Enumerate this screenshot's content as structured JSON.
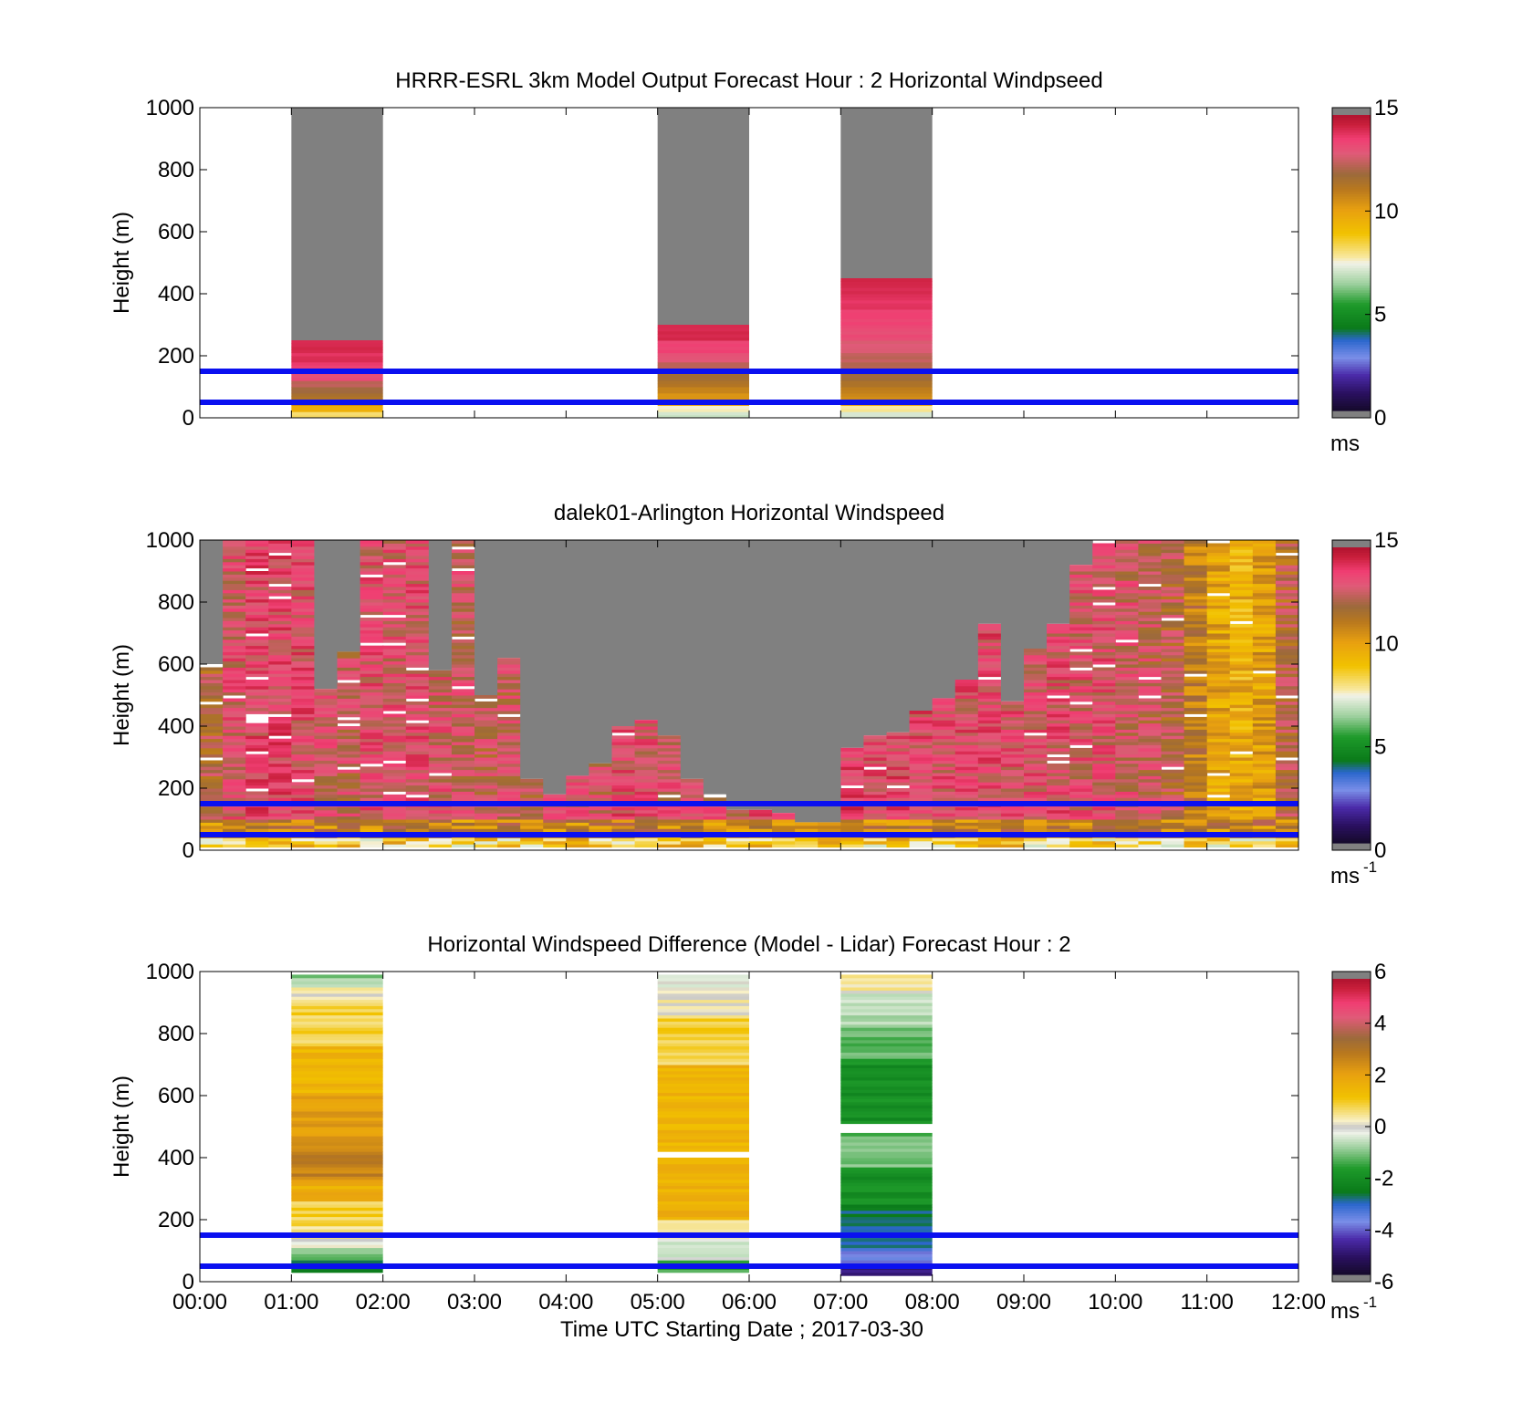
{
  "chart_data": [
    {
      "type": "heatmap",
      "title": "HRRR-ESRL 3km Model Output   Forecast Hour : 2 Horizontal Windpseed",
      "ylabel": "Height (m)",
      "xlabel": "",
      "ylim": [
        0,
        1000
      ],
      "yticks": [
        "0",
        "200",
        "400",
        "600",
        "800",
        "1000"
      ],
      "xlim_hours": [
        0,
        12
      ],
      "colorbar": {
        "min": 0,
        "max": 15,
        "ticks": [
          "0",
          "5",
          "10",
          "15"
        ],
        "unit": "ms",
        "unit_sup": "",
        "scale": "speed"
      },
      "reference_lines_m": [
        50,
        150
      ],
      "columns": [
        {
          "start_hour": 1,
          "end_hour": 2,
          "valid_top_m": 250,
          "layers": [
            [
              0,
              20,
              8.2
            ],
            [
              20,
              40,
              9.6
            ],
            [
              40,
              60,
              10.8
            ],
            [
              60,
              80,
              11.6
            ],
            [
              80,
              100,
              12.0
            ],
            [
              100,
              120,
              12.5
            ],
            [
              120,
              150,
              13.4
            ],
            [
              150,
              180,
              13.8
            ],
            [
              180,
              210,
              14.1
            ],
            [
              210,
              250,
              14.3
            ]
          ]
        },
        {
          "start_hour": 5,
          "end_hour": 6,
          "valid_top_m": 300,
          "layers": [
            [
              0,
              20,
              7.0
            ],
            [
              20,
              40,
              7.6
            ],
            [
              40,
              60,
              10.2
            ],
            [
              60,
              80,
              10.6
            ],
            [
              80,
              100,
              11.0
            ],
            [
              100,
              120,
              11.4
            ],
            [
              120,
              150,
              11.8
            ],
            [
              150,
              180,
              12.4
            ],
            [
              180,
              210,
              13.2
            ],
            [
              210,
              250,
              13.7
            ],
            [
              250,
              300,
              14.3
            ]
          ]
        },
        {
          "start_hour": 7,
          "end_hour": 8,
          "valid_top_m": 450,
          "layers": [
            [
              0,
              20,
              7.2
            ],
            [
              20,
              40,
              7.8
            ],
            [
              40,
              60,
              10.3
            ],
            [
              60,
              80,
              10.8
            ],
            [
              80,
              100,
              11.2
            ],
            [
              100,
              120,
              11.6
            ],
            [
              120,
              150,
              12.0
            ],
            [
              150,
              180,
              12.3
            ],
            [
              180,
              210,
              12.6
            ],
            [
              210,
              250,
              13.0
            ],
            [
              250,
              300,
              13.4
            ],
            [
              300,
              350,
              13.7
            ],
            [
              350,
              400,
              14.0
            ],
            [
              400,
              450,
              14.3
            ]
          ]
        }
      ]
    },
    {
      "type": "heatmap",
      "title": "dalek01-Arlington  Horizontal Windspeed",
      "ylabel": "Height (m)",
      "xlabel": "",
      "ylim": [
        0,
        1000
      ],
      "yticks": [
        "0",
        "200",
        "400",
        "600",
        "800",
        "1000"
      ],
      "xlim_hours": [
        0,
        12
      ],
      "colorbar": {
        "min": 0,
        "max": 15,
        "ticks": [
          "0",
          "5",
          "10",
          "15"
        ],
        "unit": "ms",
        "unit_sup": "-1",
        "scale": "speed"
      },
      "reference_lines_m": [
        50,
        150
      ],
      "bin_width_hours": 0.25,
      "profiles": [
        {
          "start_hour": 0.0,
          "valid_top_m": 600,
          "mean": 12.4
        },
        {
          "start_hour": 0.25,
          "valid_top_m": 1000,
          "mean": 13.4
        },
        {
          "start_hour": 0.5,
          "valid_top_m": 1000,
          "mean": 13.8
        },
        {
          "start_hour": 0.75,
          "valid_top_m": 1000,
          "mean": 13.9
        },
        {
          "start_hour": 1.0,
          "valid_top_m": 1000,
          "mean": 13.7
        },
        {
          "start_hour": 1.25,
          "valid_top_m": 520,
          "mean": 13.2
        },
        {
          "start_hour": 1.5,
          "valid_top_m": 640,
          "mean": 13.0
        },
        {
          "start_hour": 1.75,
          "valid_top_m": 1000,
          "mean": 13.5
        },
        {
          "start_hour": 2.0,
          "valid_top_m": 1000,
          "mean": 13.4
        },
        {
          "start_hour": 2.25,
          "valid_top_m": 1000,
          "mean": 13.6
        },
        {
          "start_hour": 2.5,
          "valid_top_m": 580,
          "mean": 13.3
        },
        {
          "start_hour": 2.75,
          "valid_top_m": 1000,
          "mean": 13.1
        },
        {
          "start_hour": 3.0,
          "valid_top_m": 500,
          "mean": 12.9
        },
        {
          "start_hour": 3.25,
          "valid_top_m": 620,
          "mean": 13.0
        },
        {
          "start_hour": 3.5,
          "valid_top_m": 230,
          "mean": 12.8
        },
        {
          "start_hour": 3.75,
          "valid_top_m": 180,
          "mean": 13.0
        },
        {
          "start_hour": 4.0,
          "valid_top_m": 240,
          "mean": 13.2
        },
        {
          "start_hour": 4.25,
          "valid_top_m": 280,
          "mean": 13.1
        },
        {
          "start_hour": 4.5,
          "valid_top_m": 400,
          "mean": 13.6
        },
        {
          "start_hour": 4.75,
          "valid_top_m": 420,
          "mean": 13.5
        },
        {
          "start_hour": 5.0,
          "valid_top_m": 370,
          "mean": 13.3
        },
        {
          "start_hour": 5.25,
          "valid_top_m": 230,
          "mean": 13.6
        },
        {
          "start_hour": 5.5,
          "valid_top_m": 180,
          "mean": 13.2
        },
        {
          "start_hour": 5.75,
          "valid_top_m": 130,
          "mean": 13.0
        },
        {
          "start_hour": 6.0,
          "valid_top_m": 130,
          "mean": 13.6
        },
        {
          "start_hour": 6.25,
          "valid_top_m": 120,
          "mean": 13.4
        },
        {
          "start_hour": 6.5,
          "valid_top_m": 90,
          "mean": 13.8
        },
        {
          "start_hour": 6.75,
          "valid_top_m": 90,
          "mean": 13.9
        },
        {
          "start_hour": 7.0,
          "valid_top_m": 330,
          "mean": 13.9
        },
        {
          "start_hour": 7.25,
          "valid_top_m": 370,
          "mean": 13.8
        },
        {
          "start_hour": 7.5,
          "valid_top_m": 380,
          "mean": 13.8
        },
        {
          "start_hour": 7.75,
          "valid_top_m": 450,
          "mean": 13.7
        },
        {
          "start_hour": 8.0,
          "valid_top_m": 490,
          "mean": 13.6
        },
        {
          "start_hour": 8.25,
          "valid_top_m": 550,
          "mean": 13.6
        },
        {
          "start_hour": 8.5,
          "valid_top_m": 730,
          "mean": 13.7
        },
        {
          "start_hour": 8.75,
          "valid_top_m": 480,
          "mean": 13.6
        },
        {
          "start_hour": 9.0,
          "valid_top_m": 650,
          "mean": 13.5
        },
        {
          "start_hour": 9.25,
          "valid_top_m": 730,
          "mean": 13.6
        },
        {
          "start_hour": 9.5,
          "valid_top_m": 920,
          "mean": 13.4
        },
        {
          "start_hour": 9.75,
          "valid_top_m": 1000,
          "mean": 13.5
        },
        {
          "start_hour": 10.0,
          "valid_top_m": 1000,
          "mean": 13.2
        },
        {
          "start_hour": 10.25,
          "valid_top_m": 1000,
          "mean": 13.0
        },
        {
          "start_hour": 10.5,
          "valid_top_m": 1000,
          "mean": 12.6
        },
        {
          "start_hour": 10.75,
          "valid_top_m": 1000,
          "mean": 11.6
        },
        {
          "start_hour": 11.0,
          "valid_top_m": 1000,
          "mean": 10.4
        },
        {
          "start_hour": 11.25,
          "valid_top_m": 1000,
          "mean": 10.0
        },
        {
          "start_hour": 11.5,
          "valid_top_m": 1000,
          "mean": 10.6
        },
        {
          "start_hour": 11.75,
          "valid_top_m": 1000,
          "mean": 12.4
        }
      ]
    },
    {
      "type": "heatmap",
      "title": "Horizontal Windspeed Difference (Model - Lidar) Forecast Hour : 2",
      "ylabel": "Height (m)",
      "xlabel": "Time UTC  Starting Date ; 2017-03-30",
      "ylim": [
        0,
        1000
      ],
      "yticks": [
        "0",
        "200",
        "400",
        "600",
        "800",
        "1000"
      ],
      "xlim_hours": [
        0,
        12
      ],
      "xticks": [
        "00:00",
        "01:00",
        "02:00",
        "03:00",
        "04:00",
        "05:00",
        "06:00",
        "07:00",
        "08:00",
        "09:00",
        "10:00",
        "11:00",
        "12:00"
      ],
      "colorbar": {
        "min": -6,
        "max": 6,
        "ticks": [
          "-6",
          "-4",
          "-2",
          "0",
          "2",
          "4",
          "6"
        ],
        "unit": "ms",
        "unit_sup": "-1",
        "scale": "diff"
      },
      "reference_lines_m": [
        50,
        150
      ],
      "columns": [
        {
          "start_hour": 1,
          "end_hour": 2,
          "valid_bottom_m": 30,
          "valid_top_m": 990,
          "layers": [
            [
              30,
              70,
              -2.6
            ],
            [
              70,
              110,
              -1.0
            ],
            [
              110,
              140,
              0.0
            ],
            [
              140,
              180,
              0.4
            ],
            [
              180,
              260,
              0.9
            ],
            [
              260,
              330,
              1.8
            ],
            [
              330,
              470,
              2.8
            ],
            [
              470,
              600,
              2.2
            ],
            [
              600,
              760,
              1.6
            ],
            [
              760,
              900,
              0.9
            ],
            [
              900,
              950,
              0.2
            ],
            [
              950,
              990,
              -0.9
            ]
          ]
        },
        {
          "start_hour": 5,
          "end_hour": 6,
          "valid_bottom_m": 30,
          "valid_top_m": 990,
          "layers": [
            [
              30,
              70,
              -1.6
            ],
            [
              70,
              140,
              -0.4
            ],
            [
              140,
              200,
              0.6
            ],
            [
              200,
              400,
              1.7
            ],
            [
              400,
              420,
              null
            ],
            [
              420,
              700,
              1.6
            ],
            [
              700,
              860,
              0.9
            ],
            [
              860,
              940,
              0.3
            ],
            [
              940,
              990,
              -0.2
            ]
          ]
        },
        {
          "start_hour": 7,
          "end_hour": 8,
          "valid_bottom_m": 20,
          "valid_top_m": 990,
          "layers": [
            [
              20,
              50,
              -5.0
            ],
            [
              50,
              100,
              -4.0
            ],
            [
              100,
              150,
              -3.2
            ],
            [
              150,
              250,
              -2.8
            ],
            [
              250,
              370,
              -2.0
            ],
            [
              370,
              480,
              -1.2
            ],
            [
              480,
              510,
              null
            ],
            [
              510,
              720,
              -2.0
            ],
            [
              720,
              830,
              -1.2
            ],
            [
              830,
              930,
              -0.6
            ],
            [
              930,
              990,
              0.3
            ]
          ]
        }
      ]
    }
  ]
}
